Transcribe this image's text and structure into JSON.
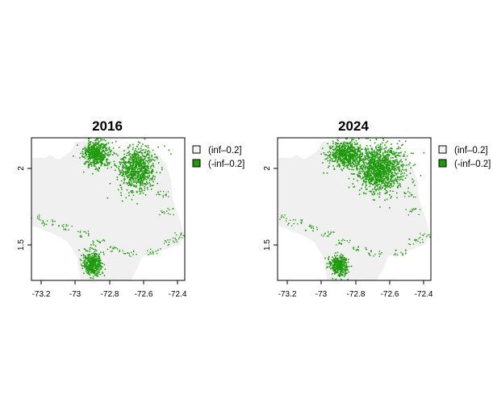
{
  "maps": [
    {
      "title": "2016",
      "x_ticks": [
        "-73.2",
        "-73",
        "-72.8",
        "-72.6",
        "-72.4"
      ],
      "y_ticks": [
        "2",
        "1.5"
      ],
      "legend": [
        {
          "label": "(inf–0.2]",
          "color": "#f2f2f2"
        },
        {
          "label": "(-inf–0.2]",
          "color": "#1f9a0c"
        }
      ],
      "green_clusters": [
        {
          "lon": -72.88,
          "lat": 2.1,
          "rx_deg": 0.07,
          "ry_deg": 0.08,
          "n": 520
        },
        {
          "lon": -72.64,
          "lat": 2.0,
          "rx_deg": 0.1,
          "ry_deg": 0.13,
          "n": 760
        },
        {
          "lon": -72.9,
          "lat": 1.38,
          "rx_deg": 0.05,
          "ry_deg": 0.07,
          "n": 420
        }
      ]
    },
    {
      "title": "2024",
      "x_ticks": [
        "-73.2",
        "-73",
        "-72.8",
        "-72.6",
        "-72.4"
      ],
      "y_ticks": [
        "2",
        "1.5"
      ],
      "legend": [
        {
          "label": "(inf–0.2]",
          "color": "#f2f2f2"
        },
        {
          "label": "(-inf–0.2]",
          "color": "#1f9a0c"
        }
      ],
      "green_clusters": [
        {
          "lon": -72.86,
          "lat": 2.1,
          "rx_deg": 0.09,
          "ry_deg": 0.08,
          "n": 640
        },
        {
          "lon": -72.66,
          "lat": 2.0,
          "rx_deg": 0.13,
          "ry_deg": 0.14,
          "n": 1200
        },
        {
          "lon": -72.9,
          "lat": 1.37,
          "rx_deg": 0.05,
          "ry_deg": 0.06,
          "n": 360
        }
      ]
    }
  ],
  "colors": {
    "region_fill": "#f0f0f0",
    "class_green": "#1f9a0c",
    "frame": "#000000"
  }
}
